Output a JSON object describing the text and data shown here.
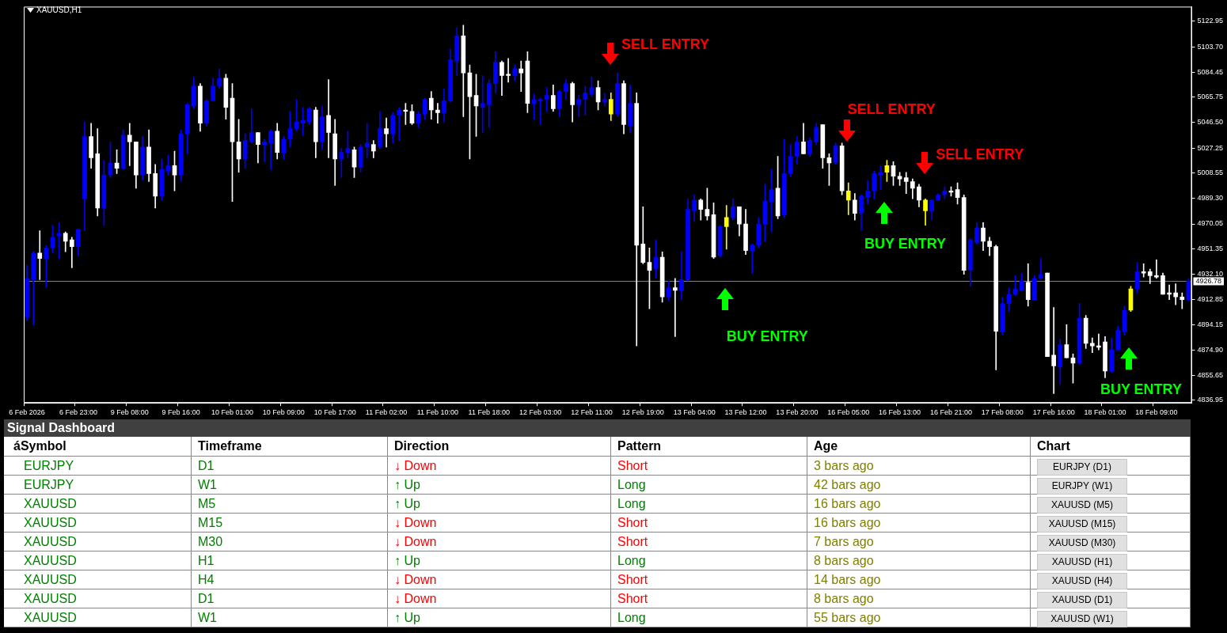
{
  "chart_data": [
    {
      "type": "candlestick",
      "title": "XAUUSD,H1",
      "categories": [
        "6 Feb 2026",
        null,
        null,
        null,
        null,
        null,
        null,
        null,
        "6 Feb 23:00",
        null,
        null,
        null,
        null,
        null,
        null,
        null,
        "9 Feb 08:00",
        null,
        null,
        null,
        null,
        null,
        null,
        null,
        "9 Feb 16:00",
        null,
        null,
        null,
        null,
        null,
        null,
        null,
        "10 Feb 01:00",
        null,
        null,
        null,
        null,
        null,
        null,
        null,
        "10 Feb 09:00",
        null,
        null,
        null,
        null,
        null,
        null,
        null,
        "10 Feb 17:00",
        null,
        null,
        null,
        null,
        null,
        null,
        null,
        "11 Feb 02:00",
        null,
        null,
        null,
        null,
        null,
        null,
        null,
        "11 Feb 10:00",
        null,
        null,
        null,
        null,
        null,
        null,
        null,
        "11 Feb 18:00",
        null,
        null,
        null,
        null,
        null,
        null,
        null,
        "12 Feb 03:00",
        null,
        null,
        null,
        null,
        null,
        null,
        null,
        "12 Feb 11:00",
        null,
        null,
        null,
        null,
        null,
        null,
        null,
        "12 Feb 19:00",
        null,
        null,
        null,
        null,
        null,
        null,
        null,
        "13 Feb 04:00",
        null,
        null,
        null,
        null,
        null,
        null,
        null,
        "13 Feb 12:00",
        null,
        null,
        null,
        null,
        null,
        null,
        null,
        "13 Feb 20:00",
        null,
        null,
        null,
        null,
        null,
        null,
        null,
        "16 Feb 05:00",
        null,
        null,
        null,
        null,
        null,
        null,
        null,
        "16 Feb 13:00",
        null,
        null,
        null,
        null,
        null,
        null,
        null,
        "16 Feb 21:00",
        null,
        null,
        null,
        null,
        null,
        null,
        null,
        "17 Feb 08:00",
        null,
        null,
        null,
        null,
        null,
        null,
        null,
        "17 Feb 16:00",
        null,
        null,
        null,
        null,
        null,
        null,
        null,
        "18 Feb 01:00",
        null,
        null,
        null,
        null,
        null,
        null,
        null,
        "18 Feb 09:00",
        null,
        null,
        null,
        null,
        null
      ],
      "ohlc": [
        [
          4900,
          4939,
          4897,
          4929
        ],
        [
          4928,
          4949,
          4894,
          4948
        ],
        [
          4948,
          4965,
          4928,
          4944
        ],
        [
          4944,
          4954,
          4922,
          4952
        ],
        [
          4952,
          4969,
          4948,
          4960
        ],
        [
          4961,
          4971,
          4944,
          4963
        ],
        [
          4963,
          4964,
          4949,
          4957
        ],
        [
          4958,
          4960,
          4937,
          4953
        ],
        [
          4953,
          4966,
          4946,
          4966
        ],
        [
          4989,
          5047,
          4965,
          5036
        ],
        [
          5036,
          5046,
          5012,
          5020
        ],
        [
          5023,
          5042,
          4976,
          4982
        ],
        [
          4982,
          5018,
          4969,
          5007
        ],
        [
          5007,
          5032,
          5005,
          5016
        ],
        [
          5016,
          5026,
          5008,
          5012
        ],
        [
          5012,
          5041,
          5011,
          5037
        ],
        [
          5037,
          5046,
          5014,
          5032
        ],
        [
          5032,
          5032,
          4997,
          5007
        ],
        [
          5007,
          5036,
          5003,
          5028
        ],
        [
          5028,
          5041,
          5002,
          5008
        ],
        [
          5008,
          5015,
          4982,
          4991
        ],
        [
          4991,
          5019,
          4988,
          5011
        ],
        [
          5010,
          5022,
          5007,
          5014
        ],
        [
          5014,
          5025,
          4995,
          5007
        ],
        [
          5007,
          5041,
          5002,
          5038
        ],
        [
          5038,
          5061,
          5023,
          5060
        ],
        [
          5059,
          5081,
          5057,
          5074
        ],
        [
          5074,
          5076,
          5040,
          5046
        ],
        [
          5046,
          5064,
          5044,
          5063
        ],
        [
          5063,
          5080,
          5063,
          5074
        ],
        [
          5074,
          5087,
          5072,
          5080
        ],
        [
          5080,
          5083,
          5049,
          5058
        ],
        [
          5065,
          5076,
          4987,
          5032
        ],
        [
          5032,
          5049,
          5009,
          5019
        ],
        [
          5019,
          5038,
          5012,
          5033
        ],
        [
          5032,
          5057,
          5031,
          5039
        ],
        [
          5039,
          5039,
          5016,
          5030
        ],
        [
          5030,
          5034,
          5017,
          5032
        ],
        [
          5031,
          5041,
          5011,
          5040
        ],
        [
          5040,
          5046,
          5019,
          5024
        ],
        [
          5024,
          5036,
          5019,
          5034
        ],
        [
          5034,
          5055,
          5028,
          5042
        ],
        [
          5042,
          5064,
          5040,
          5047
        ],
        [
          5046,
          5058,
          5037,
          5048
        ],
        [
          5047,
          5058,
          5045,
          5057
        ],
        [
          5056,
          5058,
          5020,
          5032
        ],
        [
          5032,
          5059,
          5026,
          5051
        ],
        [
          5052,
          5079,
          5020,
          5039
        ],
        [
          5038,
          5049,
          4999,
          5019
        ],
        [
          5019,
          5027,
          5005,
          5024
        ],
        [
          5024,
          5040,
          5020,
          5027
        ],
        [
          5026,
          5028,
          5005,
          5013
        ],
        [
          5013,
          5030,
          5009,
          5028
        ],
        [
          5028,
          5046,
          5020,
          5031
        ],
        [
          5030,
          5033,
          5020,
          5025
        ],
        [
          5028,
          5055,
          5027,
          5042
        ],
        [
          5042,
          5050,
          5028,
          5038
        ],
        [
          5038,
          5054,
          5031,
          5052
        ],
        [
          5052,
          5058,
          5033,
          5056
        ],
        [
          5056,
          5061,
          5045,
          5055
        ],
        [
          5055,
          5060,
          5045,
          5046
        ],
        [
          5046,
          5055,
          5043,
          5053
        ],
        [
          5053,
          5065,
          5049,
          5064
        ],
        [
          5065,
          5070,
          5049,
          5056
        ],
        [
          5056,
          5061,
          5046,
          5054
        ],
        [
          5054,
          5072,
          5047,
          5063
        ],
        [
          5063,
          5102,
          5062,
          5094
        ],
        [
          5093,
          5118,
          5082,
          5112
        ],
        [
          5112,
          5120,
          5051,
          5084
        ],
        [
          5084,
          5090,
          5019,
          5066
        ],
        [
          5067,
          5083,
          5036,
          5059
        ],
        [
          5058,
          5082,
          5039,
          5061
        ],
        [
          5060,
          5079,
          5043,
          5076
        ],
        [
          5076,
          5100,
          5069,
          5092
        ],
        [
          5092,
          5093,
          5067,
          5082
        ],
        [
          5083,
          5095,
          5077,
          5082
        ],
        [
          5082,
          5090,
          5078,
          5087
        ],
        [
          5087,
          5093,
          5070,
          5084
        ],
        [
          5093,
          5100,
          5054,
          5061
        ],
        [
          5061,
          5068,
          5049,
          5064
        ],
        [
          5063,
          5065,
          5045,
          5064
        ],
        [
          5064,
          5073,
          5055,
          5067
        ],
        [
          5067,
          5075,
          5055,
          5057
        ],
        [
          5057,
          5071,
          5051,
          5070
        ],
        [
          5070,
          5079,
          5064,
          5076
        ],
        [
          5076,
          5077,
          5047,
          5060
        ],
        [
          5060,
          5067,
          5051,
          5064
        ],
        [
          5064,
          5074,
          5052,
          5069
        ],
        [
          5068,
          5081,
          5066,
          5073
        ],
        [
          5073,
          5078,
          5056,
          5062
        ],
        [
          5062,
          5069,
          5059,
          5064
        ],
        [
          5064,
          5069,
          5048,
          5053
        ],
        [
          5053,
          5084,
          5051,
          5076
        ],
        [
          5076,
          5078,
          5038,
          5045
        ],
        [
          5044,
          5075,
          5039,
          5061
        ],
        [
          5061,
          5069,
          4878,
          4954
        ],
        [
          4955,
          4983,
          4940,
          4941
        ],
        [
          4941,
          4952,
          4906,
          4935
        ],
        [
          4936,
          4958,
          4929,
          4945
        ],
        [
          4945,
          4949,
          4911,
          4915
        ],
        [
          4915,
          4927,
          4912,
          4922
        ],
        [
          4922,
          4929,
          4885,
          4920
        ],
        [
          4920,
          4949,
          4913,
          4928
        ],
        [
          4928,
          4989,
          4927,
          4981
        ],
        [
          4980,
          4992,
          4972,
          4988
        ],
        [
          4988,
          4989,
          4973,
          4981
        ],
        [
          4981,
          4997,
          4973,
          4976
        ],
        [
          4977,
          4986,
          4944,
          4945
        ],
        [
          4946,
          4969,
          4945,
          4968
        ],
        [
          4968,
          4984,
          4951,
          4975
        ],
        [
          4975,
          4989,
          4973,
          4983
        ],
        [
          4983,
          4983,
          4961,
          4970
        ],
        [
          4970,
          4981,
          4947,
          4950
        ],
        [
          4950,
          4955,
          4933,
          4954
        ],
        [
          4954,
          4975,
          4952,
          4970
        ],
        [
          4970,
          5000,
          4957,
          4987
        ],
        [
          4987,
          5011,
          4964,
          4996
        ],
        [
          4997,
          5021,
          4974,
          4976
        ],
        [
          4977,
          5034,
          4975,
          5008
        ],
        [
          5008,
          5030,
          5006,
          5021
        ],
        [
          5021,
          5036,
          5015,
          5032
        ],
        [
          5032,
          5046,
          5023,
          5023
        ],
        [
          5023,
          5035,
          5021,
          5033
        ],
        [
          5032,
          5046,
          5030,
          5043
        ],
        [
          5045,
          5045,
          5012,
          5020
        ],
        [
          5020,
          5023,
          4999,
          5016
        ],
        [
          5016,
          5031,
          5015,
          5029
        ],
        [
          5029,
          5031,
          4992,
          4995
        ],
        [
          4995,
          5001,
          4977,
          4988
        ],
        [
          4988,
          4993,
          4973,
          4978
        ],
        [
          4978,
          4992,
          4965,
          4991
        ],
        [
          4990,
          5003,
          4985,
          4995
        ],
        [
          4995,
          5010,
          4989,
          5008
        ],
        [
          5007,
          5014,
          4996,
          5009
        ],
        [
          5009,
          5018,
          5002,
          5014
        ],
        [
          5014,
          5017,
          4999,
          5006
        ],
        [
          5006,
          5009,
          4999,
          5004
        ],
        [
          5005,
          5009,
          4993,
          5002
        ],
        [
          5002,
          5004,
          4989,
          4997
        ],
        [
          4998,
          5000,
          4983,
          4988
        ],
        [
          4988,
          4989,
          4969,
          4980
        ],
        [
          4980,
          4988,
          4973,
          4988
        ],
        [
          4988,
          4993,
          4988,
          4992
        ],
        [
          4992,
          4998,
          4989,
          4995
        ],
        [
          4995,
          4998,
          4991,
          4994
        ],
        [
          4996,
          5001,
          4985,
          4990
        ],
        [
          4990,
          4992,
          4932,
          4935
        ],
        [
          4935,
          4959,
          4923,
          4958
        ],
        [
          4956,
          4971,
          4955,
          4967
        ],
        [
          4967,
          4971,
          4950,
          4957
        ],
        [
          4957,
          4960,
          4946,
          4953
        ],
        [
          4953,
          4954,
          4860,
          4889
        ],
        [
          4889,
          4915,
          4886,
          4910
        ],
        [
          4910,
          4922,
          4904,
          4917
        ],
        [
          4917,
          4931,
          4916,
          4921
        ],
        [
          4920,
          4933,
          4920,
          4927
        ],
        [
          4926,
          4940,
          4908,
          4913
        ],
        [
          4913,
          4931,
          4913,
          4929
        ],
        [
          4929,
          4944,
          4928,
          4932
        ],
        [
          4933,
          4933,
          4870,
          4870
        ],
        [
          4871,
          4907,
          4842,
          4863
        ],
        [
          4862,
          4883,
          4849,
          4879
        ],
        [
          4879,
          4894,
          4869,
          4869
        ],
        [
          4869,
          4872,
          4850,
          4865
        ],
        [
          4865,
          4910,
          4864,
          4899
        ],
        [
          4899,
          4901,
          4876,
          4880
        ],
        [
          4880,
          4884,
          4873,
          4878
        ],
        [
          4878,
          4887,
          4875,
          4877
        ],
        [
          4881,
          4885,
          4854,
          4859
        ],
        [
          4859,
          4884,
          4858,
          4875
        ],
        [
          4875,
          4893,
          4875,
          4890
        ],
        [
          4889,
          4908,
          4886,
          4905
        ],
        [
          4905,
          4923,
          4904,
          4921
        ],
        [
          4921,
          4941,
          4918,
          4934
        ],
        [
          4934,
          4940,
          4930,
          4933
        ],
        [
          4934,
          4936,
          4925,
          4931
        ],
        [
          4931,
          4943,
          4929,
          4930
        ],
        [
          4931,
          4933,
          4917,
          4917
        ],
        [
          4918,
          4924,
          4913,
          4917
        ],
        [
          4918,
          4925,
          4909,
          4915
        ],
        [
          4915,
          4918,
          4906,
          4913
        ],
        [
          4913,
          4929,
          4912,
          4927
        ]
      ],
      "colors": [
        "#0000ff",
        "#0000ff",
        "#ffffff",
        "#0000ff",
        "#0000ff",
        "#0000ff",
        "#ffffff",
        "#ffffff",
        "#0000ff",
        "#0000ff",
        "#ffffff",
        "#ffffff",
        "#0000ff",
        "#0000ff",
        "#ffffff",
        "#0000ff",
        "#ffffff",
        "#ffffff",
        "#0000ff",
        "#ffffff",
        "#ffffff",
        "#0000ff",
        "#0000ff",
        "#ffffff",
        "#0000ff",
        "#0000ff",
        "#0000ff",
        "#ffffff",
        "#0000ff",
        "#0000ff",
        "#0000ff",
        "#ffffff",
        "#ffffff",
        "#ffffff",
        "#0000ff",
        "#0000ff",
        "#ffffff",
        "#0000ff",
        "#0000ff",
        "#ffffff",
        "#0000ff",
        "#0000ff",
        "#0000ff",
        "#0000ff",
        "#0000ff",
        "#ffffff",
        "#0000ff",
        "#ffffff",
        "#ffffff",
        "#0000ff",
        "#0000ff",
        "#ffffff",
        "#0000ff",
        "#0000ff",
        "#ffffff",
        "#0000ff",
        "#ffffff",
        "#0000ff",
        "#0000ff",
        "#ffffff",
        "#ffffff",
        "#0000ff",
        "#0000ff",
        "#ffffff",
        "#ffffff",
        "#0000ff",
        "#0000ff",
        "#0000ff",
        "#ffffff",
        "#ffffff",
        "#ffffff",
        "#0000ff",
        "#0000ff",
        "#0000ff",
        "#ffffff",
        "#ffffff",
        "#0000ff",
        "#ffffff",
        "#ffffff",
        "#0000ff",
        "#0000ff",
        "#0000ff",
        "#ffffff",
        "#0000ff",
        "#0000ff",
        "#ffffff",
        "#0000ff",
        "#0000ff",
        "#0000ff",
        "#ffffff",
        "#0000ff",
        "#ffff00",
        "#0000ff",
        "#ffffff",
        "#0000ff",
        "#ffffff",
        "#ffffff",
        "#ffffff",
        "#0000ff",
        "#ffffff",
        "#0000ff",
        "#ffffff",
        "#0000ff",
        "#0000ff",
        "#0000ff",
        "#ffffff",
        "#ffffff",
        "#ffffff",
        "#0000ff",
        "#ffff00",
        "#0000ff",
        "#ffffff",
        "#ffffff",
        "#0000ff",
        "#0000ff",
        "#0000ff",
        "#0000ff",
        "#ffffff",
        "#0000ff",
        "#0000ff",
        "#0000ff",
        "#ffffff",
        "#0000ff",
        "#0000ff",
        "#ffffff",
        "#ffffff",
        "#0000ff",
        "#ffffff",
        "#ffff00",
        "#ffffff",
        "#0000ff",
        "#0000ff",
        "#0000ff",
        "#0000ff",
        "#ffff00",
        "#ffffff",
        "#ffffff",
        "#ffffff",
        "#ffffff",
        "#ffffff",
        "#ffff00",
        "#0000ff",
        "#0000ff",
        "#0000ff",
        "#ffffff",
        "#ffffff",
        "#ffffff",
        "#0000ff",
        "#0000ff",
        "#ffffff",
        "#ffffff",
        "#ffffff",
        "#0000ff",
        "#0000ff",
        "#0000ff",
        "#0000ff",
        "#ffffff",
        "#0000ff",
        "#0000ff",
        "#ffffff",
        "#ffffff",
        "#0000ff",
        "#ffffff",
        "#ffffff",
        "#0000ff",
        "#ffffff",
        "#ffffff",
        "#ffffff",
        "#ffffff",
        "#0000ff",
        "#0000ff",
        "#0000ff",
        "#ffff00",
        "#0000ff",
        "#ffffff",
        "#ffffff",
        "#ffffff",
        "#ffffff",
        "#ffffff",
        "#ffffff",
        "#ffffff",
        "#0000ff"
      ],
      "ylim": [
        4835,
        5134
      ],
      "yticks": [
        5122.95,
        {
          "value": 5103.7,
          "label": "5103.70"
        },
        5084.45,
        5065.75,
        {
          "value": 5046.5,
          "label": "5046.50"
        },
        5027.25,
        5008.55,
        {
          "value": 4989.3,
          "label": "4989.30"
        },
        4970.05,
        4951.35,
        {
          "value": 4932.1,
          "label": "4932.10"
        },
        4912.85,
        4894.15,
        {
          "value": 4874.9,
          "label": "4874.90"
        },
        4855.65,
        4836.95
      ],
      "ref_lines": [
        {
          "axis": "y",
          "value": 4926.78,
          "label": "4926.78",
          "color": "#778899"
        }
      ],
      "annotations": [
        "SELL ENTRY",
        "BUY ENTRY",
        "SELL ENTRY",
        "BUY ENTRY",
        "SELL ENTRY",
        "BUY ENTRY"
      ]
    },
    {
      "type": "other",
      "title": "Signal Dashboard",
      "categories": [
        "áSymbol",
        "Timeframe",
        "Direction",
        "Pattern",
        "Age",
        "Chart"
      ],
      "cell_labels": [
        [
          "EURJPY",
          "D1",
          "↓ Down",
          "Short",
          "3 bars ago",
          "EURJPY (D1)"
        ],
        [
          "EURJPY",
          "W1",
          "↑ Up",
          "Long",
          "42 bars ago",
          "EURJPY (W1)"
        ],
        [
          "XAUUSD",
          "M5",
          "↑ Up",
          "Long",
          "16 bars ago",
          "XAUUSD (M5)"
        ],
        [
          "XAUUSD",
          "M15",
          "↓ Down",
          "Short",
          "16 bars ago",
          "XAUUSD (M15)"
        ],
        [
          "XAUUSD",
          "M30",
          "↓ Down",
          "Short",
          "7 bars ago",
          "XAUUSD (M30)"
        ],
        [
          "XAUUSD",
          "H1",
          "↑ Up",
          "Long",
          "8 bars ago",
          "XAUUSD (H1)"
        ],
        [
          "XAUUSD",
          "H4",
          "↓ Down",
          "Short",
          "14 bars ago",
          "XAUUSD (H4)"
        ],
        [
          "XAUUSD",
          "D1",
          "↓ Down",
          "Short",
          "8 bars ago",
          "XAUUSD (D1)"
        ],
        [
          "XAUUSD",
          "W1",
          "↑ Up",
          "Long",
          "55 bars ago",
          "XAUUSD (W1)"
        ]
      ],
      "colors": [
        [
          "#008000",
          "#008000",
          "#ff0000",
          "#ff0000",
          "#808000",
          "#000000"
        ],
        [
          "#008000",
          "#008000",
          "#008000",
          "#008000",
          "#808000",
          "#000000"
        ],
        [
          "#008000",
          "#008000",
          "#008000",
          "#008000",
          "#808000",
          "#000000"
        ],
        [
          "#008000",
          "#008000",
          "#ff0000",
          "#ff0000",
          "#808000",
          "#000000"
        ],
        [
          "#008000",
          "#008000",
          "#ff0000",
          "#ff0000",
          "#808000",
          "#000000"
        ],
        [
          "#008000",
          "#008000",
          "#008000",
          "#008000",
          "#808000",
          "#000000"
        ],
        [
          "#008000",
          "#008000",
          "#ff0000",
          "#ff0000",
          "#808000",
          "#000000"
        ],
        [
          "#008000",
          "#008000",
          "#ff0000",
          "#ff0000",
          "#808000",
          "#000000"
        ],
        [
          "#008000",
          "#008000",
          "#008000",
          "#008000",
          "#808000",
          "#000000"
        ]
      ]
    }
  ]
}
